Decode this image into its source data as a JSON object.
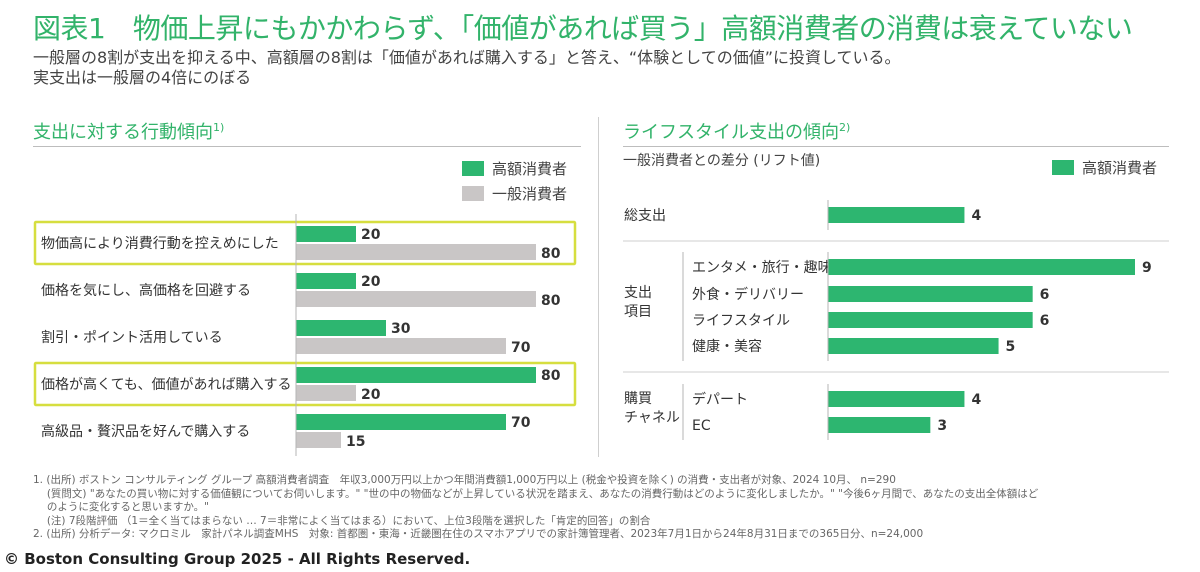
{
  "title": "図表1　物価上昇にもかかわらず、「価値があれば買う」高額消費者の消費は衰えていない",
  "subtitle_lines": [
    "一般層の8割が支出を抑える中、高額層の8割は「価値があれば購入する」と答え、“体験としての価値”に投資している。",
    "実支出は一般層の4倍にのぼる"
  ],
  "colors": {
    "accent": "#32b36a",
    "bar_high": "#2db670",
    "bar_general": "#c9c6c6",
    "highlight_border": "#d6de3f"
  },
  "left": {
    "section_title": "支出に対する行動傾向",
    "section_note": "1)",
    "legend": [
      {
        "label": "高額消費者",
        "color": "#2db670"
      },
      {
        "label": "一般消費者",
        "color": "#c9c6c6"
      }
    ]
  },
  "right": {
    "section_title": "ライフスタイル支出の傾向",
    "section_note": "2)",
    "sub_label": "一般消費者との差分 (リフト値)",
    "legend": [
      {
        "label": "高額消費者",
        "color": "#2db670"
      }
    ]
  },
  "chart_data": [
    {
      "type": "bar",
      "orientation": "horizontal",
      "categories": [
        "物価高により消費行動を控えめにした",
        "価格を気にし、高価格を回避する",
        "割引・ポイント活用している",
        "価格が高くても、価値があれば購入する",
        "高級品・贅沢品を好んで購入する"
      ],
      "highlighted": [
        true,
        false,
        false,
        true,
        false
      ],
      "series": [
        {
          "name": "高額消費者",
          "values": [
            20,
            20,
            30,
            80,
            70
          ]
        },
        {
          "name": "一般消費者",
          "values": [
            80,
            80,
            70,
            20,
            15
          ]
        }
      ],
      "xlim": [
        0,
        100
      ]
    },
    {
      "type": "bar",
      "orientation": "horizontal",
      "groups": [
        {
          "label": "",
          "items": [
            {
              "label": "総支出",
              "value": 4
            }
          ]
        },
        {
          "label": "支出\n項目",
          "items": [
            {
              "label": "エンタメ・旅行・趣味",
              "value": 9
            },
            {
              "label": "外食・デリバリー",
              "value": 6
            },
            {
              "label": "ライフスタイル",
              "value": 6
            },
            {
              "label": "健康・美容",
              "value": 5
            }
          ]
        },
        {
          "label": "購買\nチャネル",
          "items": [
            {
              "label": "デパート",
              "value": 4
            },
            {
              "label": "EC",
              "value": 3
            }
          ]
        }
      ],
      "series_name": "高額消費者",
      "xlim": [
        0,
        9
      ]
    }
  ],
  "footnotes": [
    "1. (出所) ボストン コンサルティング グループ 高額消費者調査　年収3,000万円以上かつ年間消費額1,000万円以上 (税金や投資を除く) の消費・支出者が対象、2024 10月、 n=290",
    "　  (質問文) \"あなたの買い物に対する価値観についてお伺いします。\"  \"世の中の物価などが上昇している状況を踏まえ、あなたの消費行動はどのように変化しましたか。\"  \"今後6ヶ月間で、あなたの支出全体額はど",
    "　  のように変化すると思いますか。\"",
    "　  (注) 7段階評価 （1＝全く当てはまらない … 7＝非常によく当てはまる）において、上位3段階を選択した「肯定的回答」の割合",
    "2. (出所) 分析データ: マクロミル　家計パネル調査MHS　対象: 首都圏・東海・近畿圏在住のスマホアプリでの家計簿管理者、2023年7月1日から24年8月31日までの365日分、n=24,000"
  ],
  "copyright": "© Boston Consulting Group 2025 - All Rights Reserved."
}
